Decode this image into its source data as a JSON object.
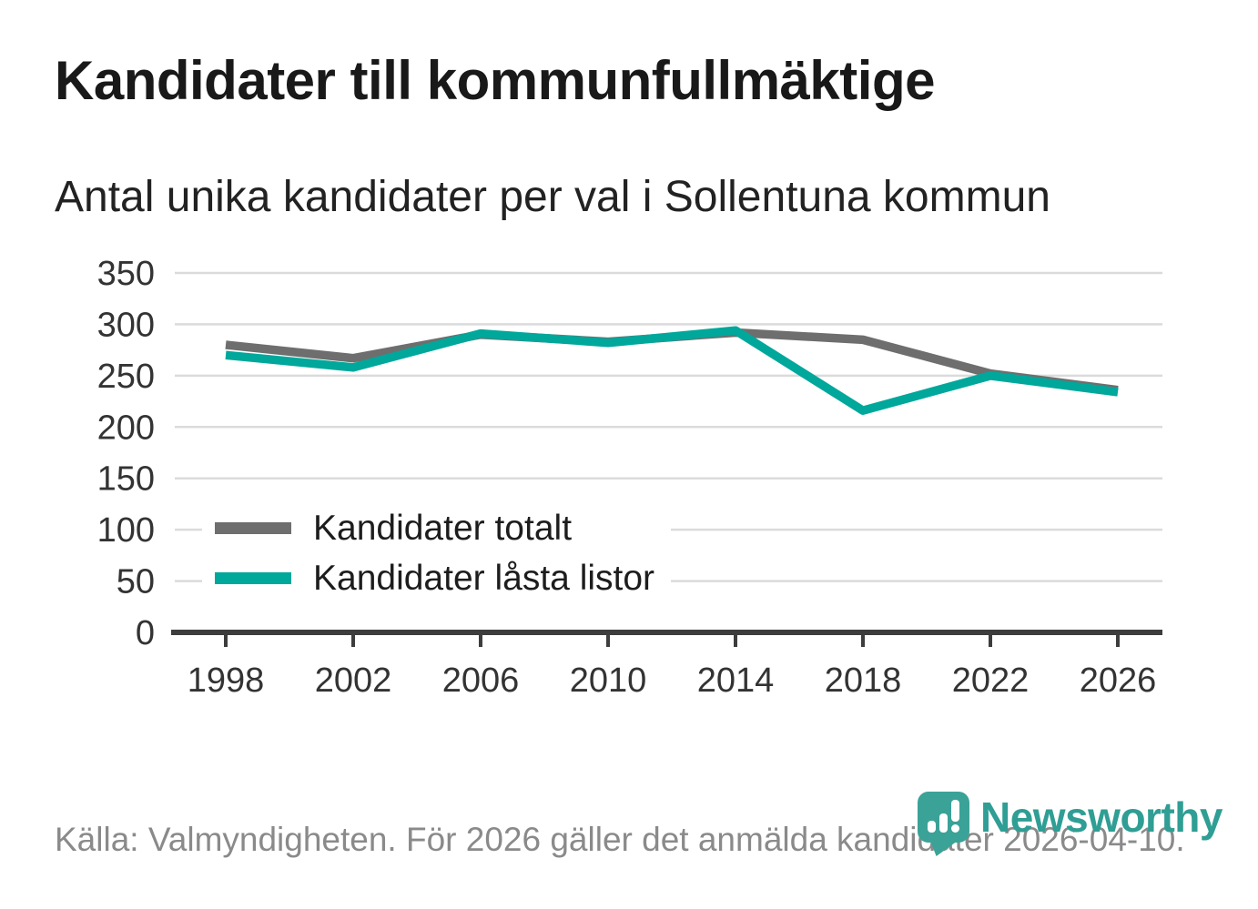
{
  "header": {
    "title": "Kandidater till kommunfullmäktige",
    "subtitle": "Antal unika kandidater per val i Sollentuna kommun"
  },
  "footer": {
    "source_text": "Källa: Valmyndigheten. För 2026 gäller det anmälda kandidater 2026-04-10."
  },
  "logo": {
    "wordmark": "Newsworthy",
    "icon": "newsworthy-pin-barchart-icon",
    "badge_color": "#3ba298",
    "wordmark_color": "#2f9e94"
  },
  "colors": {
    "title_text": "#191919",
    "axis_text": "#333333",
    "gridline": "#dbdbdb",
    "axis_line": "#3d3d3d",
    "footer_text": "#8a8a8a"
  },
  "chart_data": {
    "type": "line",
    "title": "Kandidater till kommunfullmäktige",
    "subtitle": "Antal unika kandidater per val i Sollentuna kommun",
    "x": [
      "1998",
      "2002",
      "2006",
      "2010",
      "2014",
      "2018",
      "2022",
      "2026"
    ],
    "series": [
      {
        "name": "Kandidater totalt",
        "color": "#6f6e6e",
        "values": [
          280,
          267,
          290,
          283,
          292,
          285,
          252,
          236
        ]
      },
      {
        "name": "Kandidater låsta listor",
        "color": "#00a79b",
        "values": [
          270,
          258,
          291,
          282,
          294,
          216,
          250,
          234
        ]
      }
    ],
    "xlabel": "",
    "ylabel": "",
    "ylim": [
      0,
      350
    ],
    "yticks": [
      0,
      50,
      100,
      150,
      200,
      250,
      300,
      350
    ],
    "grid": "horizontal",
    "legend_position": "inside-left"
  }
}
